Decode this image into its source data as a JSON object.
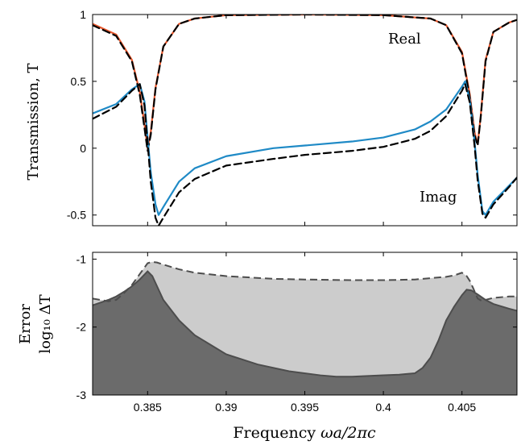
{
  "x_axis": {
    "label_prefix": "Frequency ",
    "label_math": "ωa/2πc",
    "range": [
      0.3815,
      0.4085
    ],
    "ticks": [
      0.385,
      0.39,
      0.395,
      0.4,
      0.405
    ],
    "tick_labels": [
      "0.385",
      "0.39",
      "0.395",
      "0.4",
      "0.405"
    ]
  },
  "colors": {
    "real_exact": "#e8572c",
    "imag_exact": "#1f8ac6",
    "approx_dashed": "#000000",
    "error_light_fill": "#cccccc",
    "error_dark_fill": "#6b6b6b",
    "error_line": "#4d4d4d"
  },
  "chart_data": [
    {
      "type": "line",
      "panel": "top",
      "ylabel": "Transmission, T",
      "ylim": [
        -0.58,
        1.0
      ],
      "yticks": [
        -0.5,
        0,
        0.5,
        1
      ],
      "ytick_labels": [
        "-0.5",
        "0",
        "0.5",
        "1"
      ],
      "annotations": [
        "Real",
        "Imag"
      ],
      "series": [
        {
          "name": "Real",
          "style": "solid-red",
          "x": [
            0.3815,
            0.383,
            0.384,
            0.3845,
            0.3848,
            0.385,
            0.3852,
            0.3855,
            0.386,
            0.387,
            0.388,
            0.39,
            0.395,
            0.4,
            0.403,
            0.404,
            0.405,
            0.4055,
            0.4058,
            0.406,
            0.4062,
            0.4065,
            0.407,
            0.408,
            0.4085
          ],
          "y": [
            0.93,
            0.85,
            0.66,
            0.42,
            0.18,
            0.0,
            0.12,
            0.45,
            0.76,
            0.93,
            0.97,
            0.995,
            1.0,
            0.995,
            0.97,
            0.92,
            0.72,
            0.4,
            0.12,
            0.03,
            0.25,
            0.66,
            0.87,
            0.94,
            0.96
          ]
        },
        {
          "name": "Real (dashed)",
          "style": "dashed-black",
          "x": [
            0.3815,
            0.383,
            0.384,
            0.3845,
            0.3848,
            0.385,
            0.3852,
            0.3855,
            0.386,
            0.387,
            0.388,
            0.39,
            0.395,
            0.4,
            0.403,
            0.404,
            0.405,
            0.4055,
            0.4058,
            0.406,
            0.4062,
            0.4065,
            0.407,
            0.408,
            0.4085
          ],
          "y": [
            0.92,
            0.84,
            0.65,
            0.4,
            0.15,
            -0.02,
            0.1,
            0.44,
            0.76,
            0.93,
            0.97,
            0.995,
            1.0,
            0.995,
            0.97,
            0.92,
            0.71,
            0.38,
            0.1,
            0.02,
            0.24,
            0.65,
            0.87,
            0.94,
            0.96
          ]
        },
        {
          "name": "Imag",
          "style": "solid-blue",
          "x": [
            0.3815,
            0.383,
            0.384,
            0.3845,
            0.3848,
            0.385,
            0.3852,
            0.3855,
            0.3857,
            0.386,
            0.387,
            0.388,
            0.39,
            0.393,
            0.395,
            0.398,
            0.4,
            0.402,
            0.403,
            0.404,
            0.405,
            0.4052,
            0.4055,
            0.4058,
            0.406,
            0.4063,
            0.4065,
            0.407,
            0.408,
            0.4085
          ],
          "y": [
            0.26,
            0.33,
            0.44,
            0.48,
            0.35,
            0.08,
            -0.18,
            -0.42,
            -0.5,
            -0.44,
            -0.25,
            -0.15,
            -0.06,
            0.0,
            0.02,
            0.05,
            0.08,
            0.14,
            0.2,
            0.29,
            0.46,
            0.5,
            0.36,
            0.05,
            -0.2,
            -0.47,
            -0.5,
            -0.4,
            -0.28,
            -0.22
          ]
        },
        {
          "name": "Imag (dashed)",
          "style": "dashed-black",
          "x": [
            0.3815,
            0.383,
            0.384,
            0.3845,
            0.3848,
            0.385,
            0.3852,
            0.3855,
            0.3857,
            0.386,
            0.387,
            0.388,
            0.39,
            0.393,
            0.395,
            0.398,
            0.4,
            0.402,
            0.403,
            0.404,
            0.405,
            0.4052,
            0.4055,
            0.4058,
            0.406,
            0.4063,
            0.4065,
            0.407,
            0.408,
            0.4085
          ],
          "y": [
            0.22,
            0.31,
            0.43,
            0.48,
            0.32,
            0.04,
            -0.25,
            -0.52,
            -0.58,
            -0.52,
            -0.33,
            -0.23,
            -0.13,
            -0.08,
            -0.05,
            -0.02,
            0.01,
            0.07,
            0.13,
            0.24,
            0.43,
            0.48,
            0.34,
            0.02,
            -0.24,
            -0.49,
            -0.52,
            -0.42,
            -0.29,
            -0.22
          ]
        }
      ]
    },
    {
      "type": "area",
      "panel": "bottom",
      "ylabel_top": "Error",
      "ylabel_bottom": "log₁₀ ΔT",
      "ylim": [
        -3,
        -0.9
      ],
      "yticks": [
        -3,
        -2,
        -1
      ],
      "ytick_labels": [
        "-3",
        "-2",
        "-1"
      ],
      "series": [
        {
          "name": "Error (dashed)",
          "style": "dashed-light-fill",
          "x": [
            0.3815,
            0.3825,
            0.383,
            0.3835,
            0.384,
            0.3845,
            0.385,
            0.3853,
            0.3856,
            0.386,
            0.387,
            0.388,
            0.39,
            0.393,
            0.395,
            0.398,
            0.4,
            0.402,
            0.403,
            0.404,
            0.4045,
            0.405,
            0.4053,
            0.4055,
            0.4057,
            0.406,
            0.4063,
            0.4065,
            0.407,
            0.408,
            0.4085
          ],
          "y": [
            -1.58,
            -1.62,
            -1.6,
            -1.5,
            -1.38,
            -1.22,
            -1.06,
            -1.04,
            -1.05,
            -1.08,
            -1.15,
            -1.2,
            -1.25,
            -1.29,
            -1.3,
            -1.31,
            -1.31,
            -1.3,
            -1.28,
            -1.26,
            -1.24,
            -1.2,
            -1.25,
            -1.32,
            -1.42,
            -1.58,
            -1.62,
            -1.6,
            -1.57,
            -1.55,
            -1.55
          ]
        },
        {
          "name": "Error (solid)",
          "style": "solid-dark-fill",
          "x": [
            0.3815,
            0.3825,
            0.383,
            0.3835,
            0.384,
            0.3845,
            0.385,
            0.3853,
            0.3856,
            0.386,
            0.387,
            0.388,
            0.39,
            0.392,
            0.394,
            0.396,
            0.397,
            0.398,
            0.399,
            0.4,
            0.401,
            0.402,
            0.4025,
            0.403,
            0.4035,
            0.404,
            0.4045,
            0.405,
            0.4053,
            0.4056,
            0.406,
            0.4065,
            0.407,
            0.408,
            0.4085
          ],
          "y": [
            -1.68,
            -1.6,
            -1.55,
            -1.48,
            -1.4,
            -1.3,
            -1.18,
            -1.25,
            -1.4,
            -1.6,
            -1.9,
            -2.12,
            -2.4,
            -2.55,
            -2.65,
            -2.71,
            -2.73,
            -2.73,
            -2.72,
            -2.71,
            -2.7,
            -2.68,
            -2.6,
            -2.45,
            -2.2,
            -1.9,
            -1.7,
            -1.53,
            -1.45,
            -1.46,
            -1.52,
            -1.6,
            -1.66,
            -1.73,
            -1.76
          ]
        }
      ]
    }
  ]
}
